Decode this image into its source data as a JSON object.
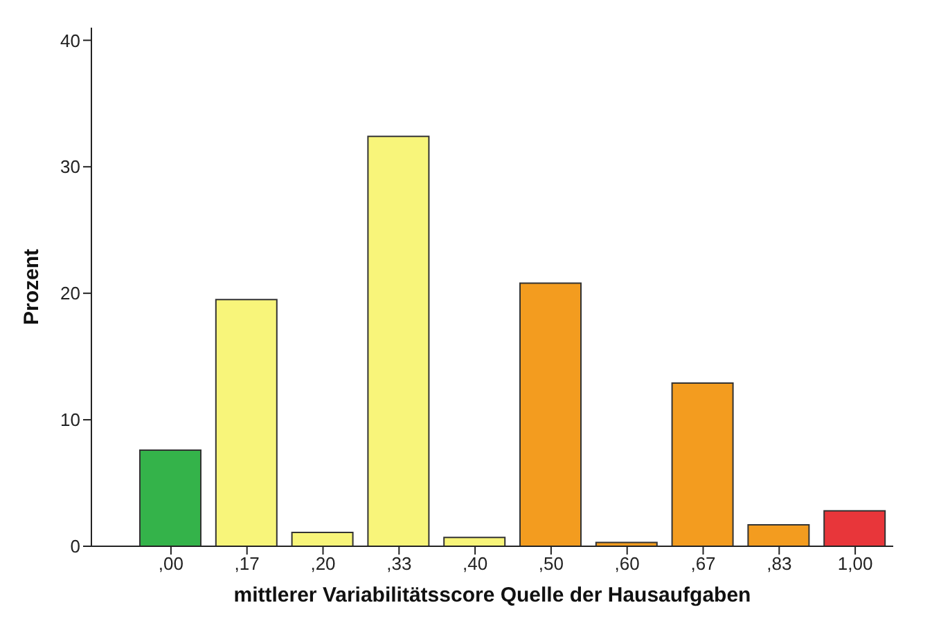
{
  "chart_data": {
    "type": "bar",
    "xlabel": "mittlerer Variabilitätsscore Quelle der Hausaufgaben",
    "ylabel": "Prozent",
    "categories": [
      ",00",
      ",17",
      ",20",
      ",33",
      ",40",
      ",50",
      ",60",
      ",67",
      ",83",
      "1,00"
    ],
    "values": [
      7.6,
      19.5,
      1.1,
      32.4,
      0.7,
      20.8,
      0.3,
      12.9,
      1.7,
      2.8
    ],
    "colors": [
      "#34b34a",
      "#f8f57a",
      "#f8f57a",
      "#f8f57a",
      "#f8f57a",
      "#f39c1f",
      "#f39c1f",
      "#f39c1f",
      "#f39c1f",
      "#e8363a"
    ],
    "ylim": [
      0,
      41
    ],
    "yticks": [
      0,
      10,
      20,
      30,
      40
    ],
    "grid": false,
    "legend": false
  }
}
